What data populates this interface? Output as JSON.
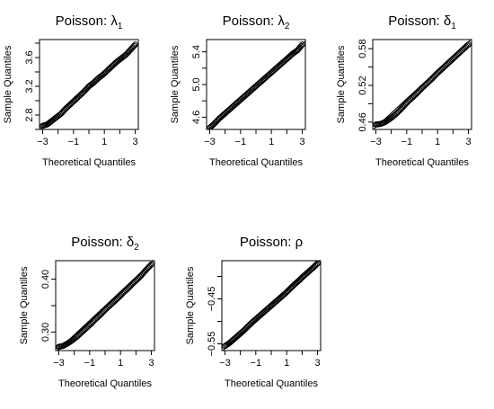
{
  "chart_data": [
    {
      "type": "scatter",
      "title_prefix": "Poisson: ",
      "title_symbol": "λ",
      "title_subscript": "1",
      "xlabel": "Theoretical Quantiles",
      "ylabel": "Sample Quantiles",
      "xlim": [
        -3.2,
        3.2
      ],
      "ylim": [
        2.6,
        3.85
      ],
      "xticks": [
        -3,
        -1,
        1,
        3
      ],
      "xtick_labels": [
        "−3",
        "−1",
        "1",
        "3"
      ],
      "yticks": [
        2.8,
        3.2,
        3.6
      ],
      "ytick_labels": [
        "2.8",
        "3.2",
        "3.6"
      ],
      "yticks_minor": [
        2.6,
        3.0,
        3.4,
        3.8
      ],
      "qq_line": [
        [
          -3.2,
          2.59
        ],
        [
          3.2,
          3.79
        ]
      ],
      "points": [
        [
          -3.0,
          2.65
        ],
        [
          -2.7,
          2.67
        ],
        [
          -2.4,
          2.72
        ],
        [
          -2.1,
          2.77
        ],
        [
          -1.8,
          2.82
        ],
        [
          -1.5,
          2.89
        ],
        [
          -1.2,
          2.95
        ],
        [
          -0.9,
          3.01
        ],
        [
          -0.6,
          3.07
        ],
        [
          -0.3,
          3.13
        ],
        [
          0.0,
          3.2
        ],
        [
          0.3,
          3.25
        ],
        [
          0.6,
          3.31
        ],
        [
          0.9,
          3.36
        ],
        [
          1.2,
          3.42
        ],
        [
          1.5,
          3.48
        ],
        [
          1.8,
          3.54
        ],
        [
          2.1,
          3.59
        ],
        [
          2.4,
          3.64
        ],
        [
          2.7,
          3.71
        ],
        [
          3.0,
          3.78
        ]
      ]
    },
    {
      "type": "scatter",
      "title_prefix": "Poisson: ",
      "title_symbol": "λ",
      "title_subscript": "2",
      "xlabel": "Theoretical Quantiles",
      "ylabel": "Sample Quantiles",
      "xlim": [
        -3.2,
        3.2
      ],
      "ylim": [
        4.45,
        5.55
      ],
      "xticks": [
        -3,
        -1,
        1,
        3
      ],
      "xtick_labels": [
        "−3",
        "−1",
        "1",
        "3"
      ],
      "yticks": [
        4.6,
        5.0,
        5.4
      ],
      "ytick_labels": [
        "4.6",
        "5.0",
        "5.4"
      ],
      "yticks_minor": [
        4.8,
        5.2
      ],
      "qq_line": [
        [
          -3.2,
          4.43
        ],
        [
          3.2,
          5.53
        ]
      ],
      "points": [
        [
          -3.0,
          4.47
        ],
        [
          -2.7,
          4.52
        ],
        [
          -2.4,
          4.58
        ],
        [
          -2.1,
          4.63
        ],
        [
          -1.8,
          4.68
        ],
        [
          -1.5,
          4.73
        ],
        [
          -1.2,
          4.78
        ],
        [
          -0.9,
          4.83
        ],
        [
          -0.6,
          4.88
        ],
        [
          -0.3,
          4.93
        ],
        [
          0.0,
          4.98
        ],
        [
          0.3,
          5.03
        ],
        [
          0.6,
          5.08
        ],
        [
          0.9,
          5.13
        ],
        [
          1.2,
          5.18
        ],
        [
          1.5,
          5.23
        ],
        [
          1.8,
          5.28
        ],
        [
          2.1,
          5.33
        ],
        [
          2.4,
          5.38
        ],
        [
          2.7,
          5.42
        ],
        [
          3.0,
          5.49
        ]
      ]
    },
    {
      "type": "scatter",
      "title_prefix": "Poisson: ",
      "title_symbol": "δ",
      "title_subscript": "1",
      "xlabel": "Theoretical Quantiles",
      "ylabel": "Sample Quantiles",
      "xlim": [
        -3.2,
        3.2
      ],
      "ylim": [
        0.448,
        0.595
      ],
      "xticks": [
        -3,
        -1,
        1,
        3
      ],
      "xtick_labels": [
        "−3",
        "−1",
        "1",
        "3"
      ],
      "yticks": [
        0.46,
        0.52,
        0.58
      ],
      "ytick_labels": [
        "0.46",
        "0.52",
        "0.58"
      ],
      "yticks_minor": [
        0.49,
        0.55
      ],
      "qq_line": [
        [
          -3.2,
          0.447
        ],
        [
          3.2,
          0.596
        ]
      ],
      "points": [
        [
          -3.0,
          0.456
        ],
        [
          -2.7,
          0.457
        ],
        [
          -2.4,
          0.46
        ],
        [
          -2.1,
          0.465
        ],
        [
          -1.8,
          0.471
        ],
        [
          -1.5,
          0.478
        ],
        [
          -1.2,
          0.486
        ],
        [
          -0.9,
          0.494
        ],
        [
          -0.6,
          0.501
        ],
        [
          -0.3,
          0.508
        ],
        [
          0.0,
          0.516
        ],
        [
          0.3,
          0.523
        ],
        [
          0.6,
          0.53
        ],
        [
          0.9,
          0.538
        ],
        [
          1.2,
          0.545
        ],
        [
          1.5,
          0.552
        ],
        [
          1.8,
          0.559
        ],
        [
          2.1,
          0.566
        ],
        [
          2.4,
          0.573
        ],
        [
          2.7,
          0.58
        ],
        [
          3.0,
          0.587
        ]
      ]
    },
    {
      "type": "scatter",
      "title_prefix": "Poisson: ",
      "title_symbol": "δ",
      "title_subscript": "2",
      "xlabel": "Theoretical Quantiles",
      "ylabel": "Sample Quantiles",
      "xlim": [
        -3.2,
        3.2
      ],
      "ylim": [
        0.265,
        0.435
      ],
      "xticks": [
        -3,
        -1,
        1,
        3
      ],
      "xtick_labels": [
        "−3",
        "−1",
        "1",
        "3"
      ],
      "yticks": [
        0.3,
        0.4
      ],
      "ytick_labels": [
        "0.30",
        "0.40"
      ],
      "yticks_minor": [
        0.35
      ],
      "qq_line": [
        [
          -3.2,
          0.262
        ],
        [
          3.2,
          0.437
        ]
      ],
      "points": [
        [
          -3.0,
          0.272
        ],
        [
          -2.7,
          0.274
        ],
        [
          -2.4,
          0.279
        ],
        [
          -2.1,
          0.285
        ],
        [
          -1.8,
          0.292
        ],
        [
          -1.5,
          0.3
        ],
        [
          -1.2,
          0.308
        ],
        [
          -0.9,
          0.316
        ],
        [
          -0.6,
          0.325
        ],
        [
          -0.3,
          0.333
        ],
        [
          0.0,
          0.342
        ],
        [
          0.3,
          0.35
        ],
        [
          0.6,
          0.358
        ],
        [
          0.9,
          0.366
        ],
        [
          1.2,
          0.375
        ],
        [
          1.5,
          0.383
        ],
        [
          1.8,
          0.392
        ],
        [
          2.1,
          0.4
        ],
        [
          2.4,
          0.409
        ],
        [
          2.7,
          0.419
        ],
        [
          3.0,
          0.428
        ]
      ]
    },
    {
      "type": "scatter",
      "title_prefix": "Poisson: ",
      "title_symbol": "ρ",
      "title_subscript": "",
      "xlabel": "Theoretical Quantiles",
      "ylabel": "Sample Quantiles",
      "xlim": [
        -3.2,
        3.2
      ],
      "ylim": [
        -0.565,
        -0.365
      ],
      "xticks": [
        -3,
        -1,
        1,
        3
      ],
      "xtick_labels": [
        "−3",
        "−1",
        "1",
        "3"
      ],
      "yticks": [
        -0.55,
        -0.45
      ],
      "ytick_labels": [
        "−0.55",
        "−0.45"
      ],
      "yticks_minor": [
        -0.5,
        -0.4
      ],
      "qq_line": [
        [
          -3.2,
          -0.567
        ],
        [
          3.2,
          -0.362
        ]
      ],
      "points": [
        [
          -3.0,
          -0.555
        ],
        [
          -2.7,
          -0.548
        ],
        [
          -2.4,
          -0.539
        ],
        [
          -2.1,
          -0.53
        ],
        [
          -1.8,
          -0.521
        ],
        [
          -1.5,
          -0.511
        ],
        [
          -1.2,
          -0.501
        ],
        [
          -0.9,
          -0.492
        ],
        [
          -0.6,
          -0.483
        ],
        [
          -0.3,
          -0.474
        ],
        [
          0.0,
          -0.465
        ],
        [
          0.3,
          -0.456
        ],
        [
          0.6,
          -0.447
        ],
        [
          0.9,
          -0.438
        ],
        [
          1.2,
          -0.428
        ],
        [
          1.5,
          -0.418
        ],
        [
          1.8,
          -0.409
        ],
        [
          2.1,
          -0.399
        ],
        [
          2.4,
          -0.39
        ],
        [
          2.7,
          -0.381
        ],
        [
          3.0,
          -0.371
        ]
      ]
    }
  ]
}
